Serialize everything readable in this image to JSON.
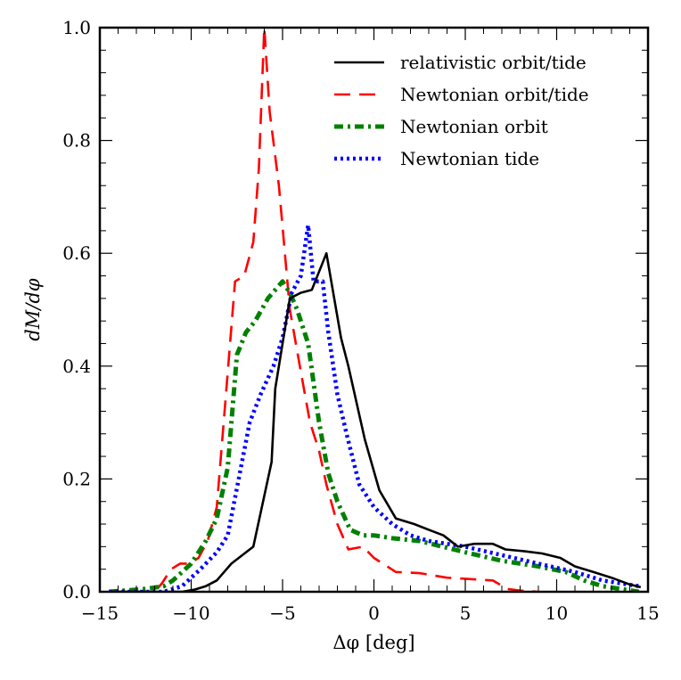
{
  "chart_data": {
    "type": "line",
    "title": "",
    "xlabel": "Δφ [deg]",
    "ylabel": "dM/dφ",
    "xlim": [
      -15,
      15
    ],
    "ylim": [
      0.0,
      1.0
    ],
    "xticks": [
      -15,
      -10,
      -5,
      0,
      5,
      10,
      15
    ],
    "xtick_labels": [
      "−15",
      "−10",
      "−5",
      "0",
      "5",
      "10",
      "15"
    ],
    "yticks": [
      0.0,
      0.2,
      0.4,
      0.6,
      0.8,
      1.0
    ],
    "ytick_labels": [
      "0.0",
      "0.2",
      "0.4",
      "0.6",
      "0.8",
      "1.0"
    ],
    "grid": false,
    "legend_position": "top-right",
    "series": [
      {
        "name": "relativistic orbit/tide",
        "color": "#000000",
        "dash": "solid",
        "x": [
          -14.5,
          -12,
          -10.5,
          -9.8,
          -9.2,
          -8.6,
          -7.8,
          -6.6,
          -5.6,
          -5.4,
          -4.6,
          -4.0,
          -3.4,
          -2.6,
          -1.8,
          -1.4,
          -0.5,
          0.3,
          1.2,
          2.2,
          3.0,
          3.8,
          4.6,
          5.5,
          6.5,
          7.2,
          8.2,
          9.2,
          10.2,
          11.0,
          12.0,
          13.0,
          14.0,
          14.6
        ],
        "y": [
          0,
          0,
          0,
          0.004,
          0.01,
          0.02,
          0.05,
          0.08,
          0.23,
          0.36,
          0.52,
          0.53,
          0.535,
          0.6,
          0.45,
          0.4,
          0.27,
          0.18,
          0.13,
          0.12,
          0.11,
          0.1,
          0.08,
          0.085,
          0.085,
          0.075,
          0.072,
          0.068,
          0.06,
          0.045,
          0.035,
          0.025,
          0.013,
          0.008
        ]
      },
      {
        "name": "Newtonian orbit/tide",
        "color": "#ff0000",
        "dash": "long-dash",
        "x": [
          -14.5,
          -12,
          -11.6,
          -11.1,
          -10.6,
          -10.1,
          -9.6,
          -9.1,
          -8.6,
          -8.1,
          -7.6,
          -7.1,
          -6.6,
          -6.3,
          -6.0,
          -5.7,
          -5.2,
          -4.6,
          -4.0,
          -3.5,
          -3.0,
          -2.6,
          -2.0,
          -1.4,
          -0.6,
          0.0,
          1.2,
          2.5,
          4.0,
          6.5,
          7.3,
          8.0,
          9.0
        ],
        "y": [
          0,
          0,
          0.015,
          0.04,
          0.05,
          0.05,
          0.06,
          0.09,
          0.15,
          0.35,
          0.55,
          0.56,
          0.62,
          0.75,
          1.0,
          0.85,
          0.72,
          0.5,
          0.39,
          0.3,
          0.25,
          0.19,
          0.12,
          0.075,
          0.08,
          0.06,
          0.035,
          0.033,
          0.025,
          0.02,
          0.005,
          0.002,
          0.0
        ]
      },
      {
        "name": "Newtonian orbit",
        "color": "#008000",
        "dash": "dash-dot",
        "x": [
          -14.5,
          -12.5,
          -11.5,
          -11.0,
          -10.0,
          -9.2,
          -8.6,
          -8.0,
          -7.5,
          -7.0,
          -6.5,
          -5.8,
          -5.0,
          -4.6,
          -4.2,
          -3.6,
          -3.0,
          -2.5,
          -2.0,
          -1.3,
          -0.6,
          0.0,
          1.0,
          2.5,
          5.0,
          7.0,
          9.0,
          10.5,
          11.5,
          12.5,
          14.5
        ],
        "y": [
          0,
          0.005,
          0.01,
          0.02,
          0.05,
          0.09,
          0.13,
          0.22,
          0.42,
          0.46,
          0.48,
          0.52,
          0.55,
          0.53,
          0.5,
          0.44,
          0.3,
          0.21,
          0.16,
          0.11,
          0.1,
          0.1,
          0.095,
          0.09,
          0.07,
          0.055,
          0.045,
          0.035,
          0.02,
          0.01,
          0.0
        ]
      },
      {
        "name": "Newtonian tide",
        "color": "#0000ff",
        "dash": "dotted",
        "x": [
          -14.5,
          -11.5,
          -10.5,
          -9.5,
          -8.6,
          -8.0,
          -7.4,
          -6.8,
          -6.2,
          -5.5,
          -5.0,
          -4.5,
          -4.0,
          -3.6,
          -3.3,
          -2.8,
          -2.5,
          -2.0,
          -1.5,
          -0.8,
          0.0,
          1.0,
          2.0,
          3.0,
          5.0,
          7.0,
          9.0,
          11.0,
          12.5,
          14.5
        ],
        "y": [
          0,
          0,
          0.01,
          0.04,
          0.07,
          0.1,
          0.2,
          0.3,
          0.35,
          0.4,
          0.45,
          0.53,
          0.56,
          0.65,
          0.55,
          0.55,
          0.46,
          0.35,
          0.28,
          0.19,
          0.15,
          0.12,
          0.1,
          0.09,
          0.08,
          0.065,
          0.05,
          0.035,
          0.02,
          0.01
        ]
      }
    ]
  }
}
